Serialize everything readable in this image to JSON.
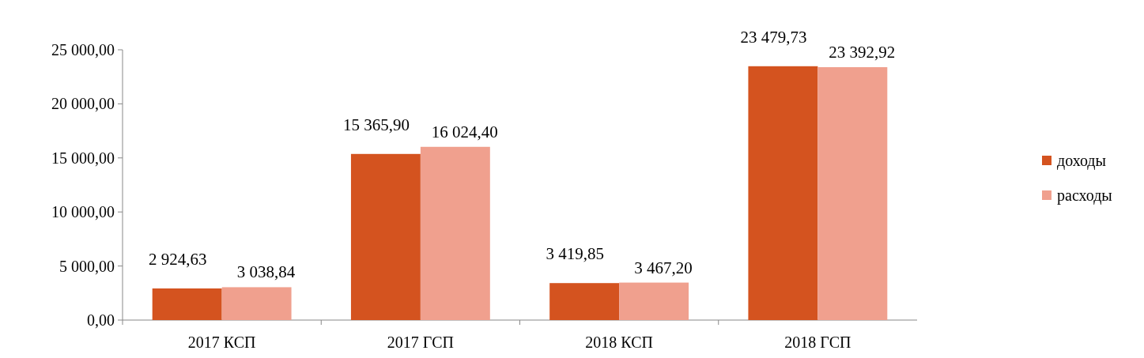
{
  "chart_data": {
    "type": "bar",
    "categories": [
      "2017 КСП",
      "2017 ГСП",
      "2018 КСП",
      "2018 ГСП"
    ],
    "series": [
      {
        "name": "доходы",
        "color": "#d4531f",
        "values": [
          2924.63,
          15365.9,
          3419.85,
          23479.73
        ],
        "value_labels": [
          "2 924,63",
          "15 365,90",
          "3 419,85",
          "23 479,73"
        ]
      },
      {
        "name": "расходы",
        "color": "#f0a08e",
        "values": [
          3038.84,
          16024.4,
          3467.2,
          23392.92
        ],
        "value_labels": [
          "3 038,84",
          "16 024,40",
          "3 467,20",
          "23 392,92"
        ]
      }
    ],
    "ylim": [
      0,
      25000
    ],
    "yticks": [
      {
        "value": 0,
        "label": "0,00"
      },
      {
        "value": 5000,
        "label": "5 000,00"
      },
      {
        "value": 10000,
        "label": "10 000,00"
      },
      {
        "value": 15000,
        "label": "15 000,00"
      },
      {
        "value": 20000,
        "label": "20 000,00"
      },
      {
        "value": 25000,
        "label": "25 000,00"
      }
    ],
    "legend": "right",
    "grid": false
  }
}
